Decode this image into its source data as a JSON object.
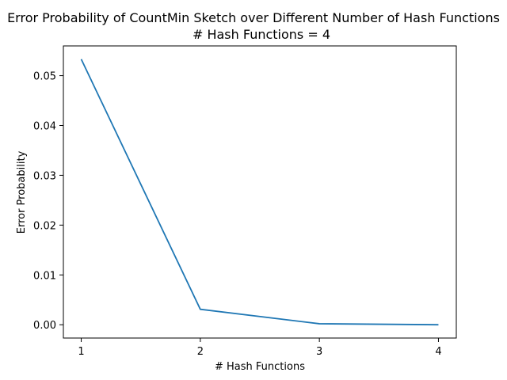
{
  "chart_data": {
    "type": "line",
    "title": "Error Probability of CountMin Sketch over Different Number of Hash Functions",
    "subtitle": "# Hash Functions = 4",
    "xlabel": "# Hash Functions",
    "ylabel": "Error Probability",
    "x": [
      1,
      2,
      3,
      4
    ],
    "series": [
      {
        "values": [
          0.0533,
          0.0031,
          0.0002,
          0.0
        ]
      }
    ],
    "xticks": [
      1,
      2,
      3,
      4
    ],
    "xtick_labels": [
      "1",
      "2",
      "3",
      "4"
    ],
    "yticks": [
      0.0,
      0.01,
      0.02,
      0.03,
      0.04,
      0.05
    ],
    "ytick_labels": [
      "0.00",
      "0.01",
      "0.02",
      "0.03",
      "0.04",
      "0.05"
    ],
    "xlim": [
      0.85,
      4.15
    ],
    "ylim": [
      -0.00267,
      0.05597
    ],
    "grid": false,
    "line_color": "#1f77b4"
  }
}
